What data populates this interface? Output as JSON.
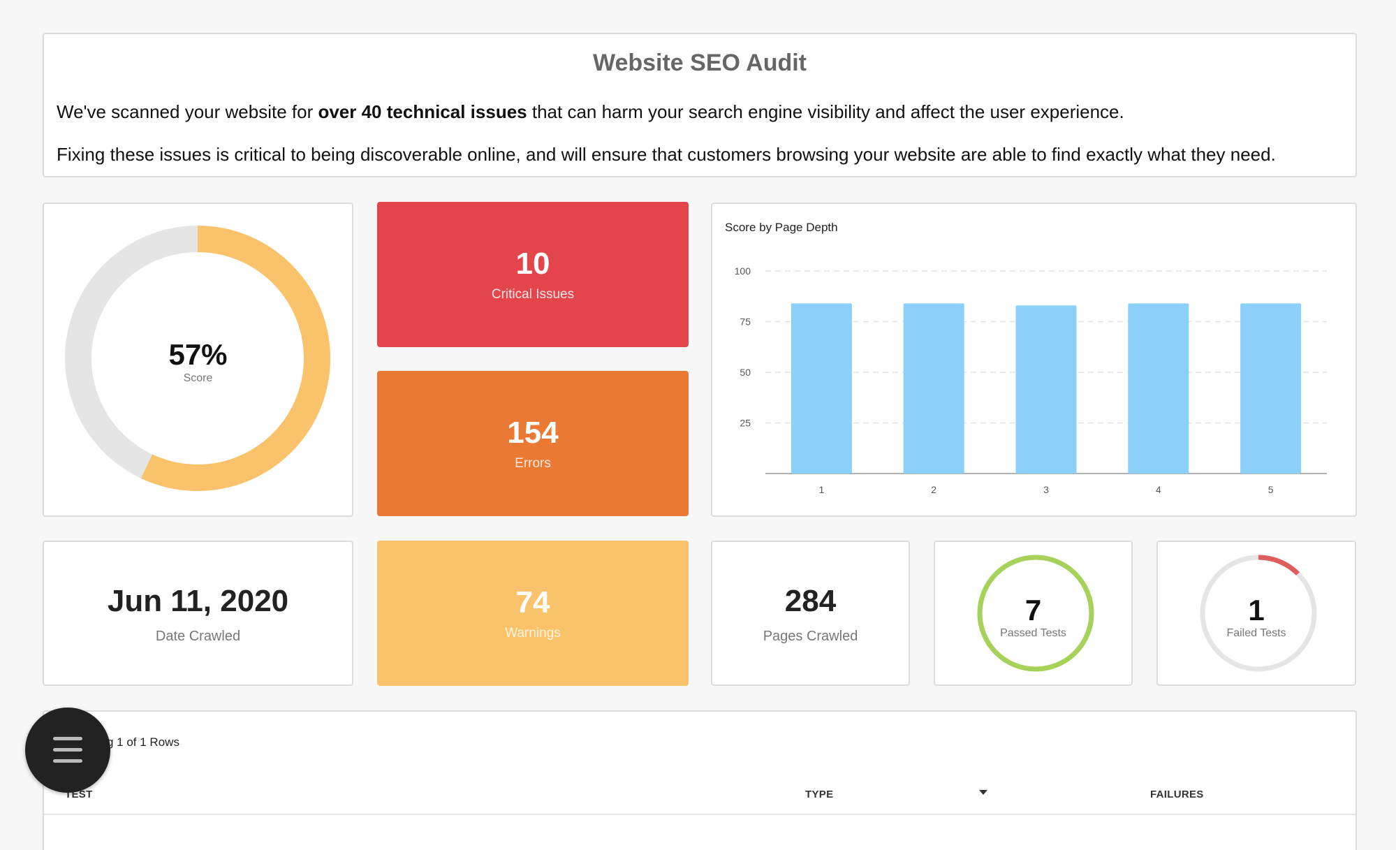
{
  "header": {
    "title": "Website SEO Audit",
    "p1_pre": "We've scanned your website for ",
    "p1_bold": "over 40 technical issues",
    "p1_post": " that can harm your search engine visibility and affect the user experience.",
    "p2": "Fixing these issues is critical to being discoverable online, and will ensure that customers browsing your website are able to find exactly what they need."
  },
  "score": {
    "value": "57%",
    "label": "Score",
    "fraction": 0.57,
    "color": "#fac36b",
    "track_color": "#e5e5e5"
  },
  "stats": {
    "critical": {
      "value": "10",
      "label": "Critical Issues",
      "color": "#e3454b"
    },
    "errors": {
      "value": "154",
      "label": "Errors",
      "color": "#ea7934"
    },
    "warnings": {
      "value": "74",
      "label": "Warnings",
      "color": "#fac36b"
    }
  },
  "date": {
    "value": "Jun 11, 2020",
    "label": "Date Crawled"
  },
  "pages": {
    "value": "284",
    "label": "Pages Crawled"
  },
  "passed": {
    "value": "7",
    "label": "Passed Tests",
    "fraction": 1.0,
    "color": "#a6d25a"
  },
  "failed": {
    "value": "1",
    "label": "Failed Tests",
    "fraction": 0.125,
    "color": "#e05d5d"
  },
  "table": {
    "rows_info": "g 1 of 1 Rows",
    "columns": [
      "TEST",
      "TYPE",
      "FAILURES"
    ]
  },
  "chart_data": {
    "type": "bar",
    "title": "Score by Page Depth",
    "categories": [
      "1",
      "2",
      "3",
      "4",
      "5"
    ],
    "values": [
      84,
      84,
      83,
      84,
      84
    ],
    "yticks": [
      25,
      50,
      75,
      100
    ],
    "ylim": [
      0,
      100
    ],
    "grid": true,
    "bar_color": "#8ad0f9"
  }
}
